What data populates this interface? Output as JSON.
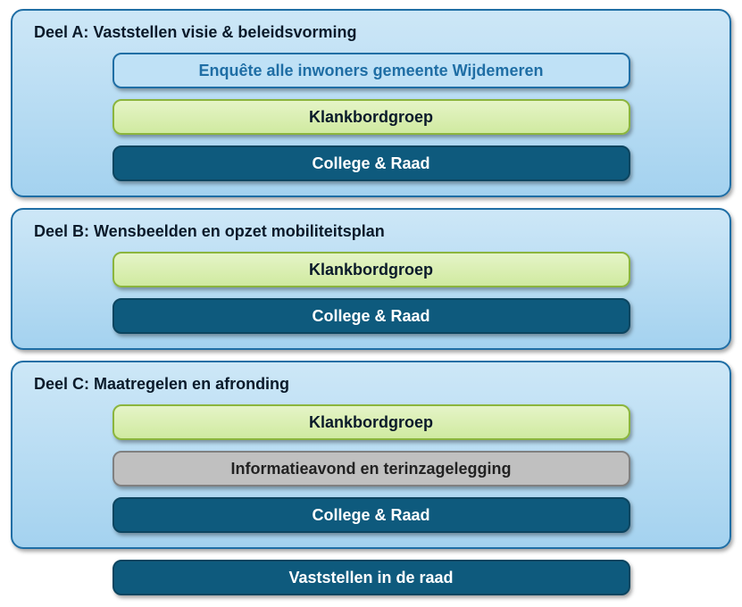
{
  "layout": {
    "panel_bg_gradient_top": "#cde7f7",
    "panel_bg_gradient_bottom": "#a4d2ef",
    "panel_border": "#1f6ea5",
    "panel_title_color": "#0a1a2a"
  },
  "styles": {
    "enquete": {
      "bg": "#bfe1f6",
      "border": "#1f6ea5",
      "text": "#1f6ea5"
    },
    "klankbord": {
      "bg_top": "#e5f4c7",
      "bg_bottom": "#d0eaa0",
      "border": "#8bb53d",
      "text": "#0a1a2a"
    },
    "college": {
      "bg": "#0e5a7d",
      "border": "#0c4560",
      "text": "#ffffff"
    },
    "info": {
      "bg": "#c0c0c0",
      "border": "#808080",
      "text": "#222222"
    },
    "vaststellen": {
      "bg": "#0e5a7d",
      "border": "#0c4560",
      "text": "#ffffff"
    }
  },
  "sections": {
    "A": {
      "title": "Deel A: Vaststellen visie & beleidsvorming",
      "rows": [
        {
          "style": "enquete",
          "label": "Enquête alle inwoners gemeente Wijdemeren"
        },
        {
          "style": "klankbord",
          "label": "Klankbordgroep"
        },
        {
          "style": "college",
          "label": "College & Raad"
        }
      ]
    },
    "B": {
      "title": "Deel B: Wensbeelden en opzet mobiliteitsplan",
      "rows": [
        {
          "style": "klankbord",
          "label": "Klankbordgroep"
        },
        {
          "style": "college",
          "label": "College & Raad"
        }
      ]
    },
    "C": {
      "title": "Deel C: Maatregelen en afronding",
      "rows": [
        {
          "style": "klankbord",
          "label": "Klankbordgroep"
        },
        {
          "style": "info",
          "label": "Informatieavond en terinzagelegging"
        },
        {
          "style": "college",
          "label": "College & Raad"
        }
      ]
    }
  },
  "final": {
    "style": "vaststellen",
    "label": "Vaststellen in de raad"
  }
}
